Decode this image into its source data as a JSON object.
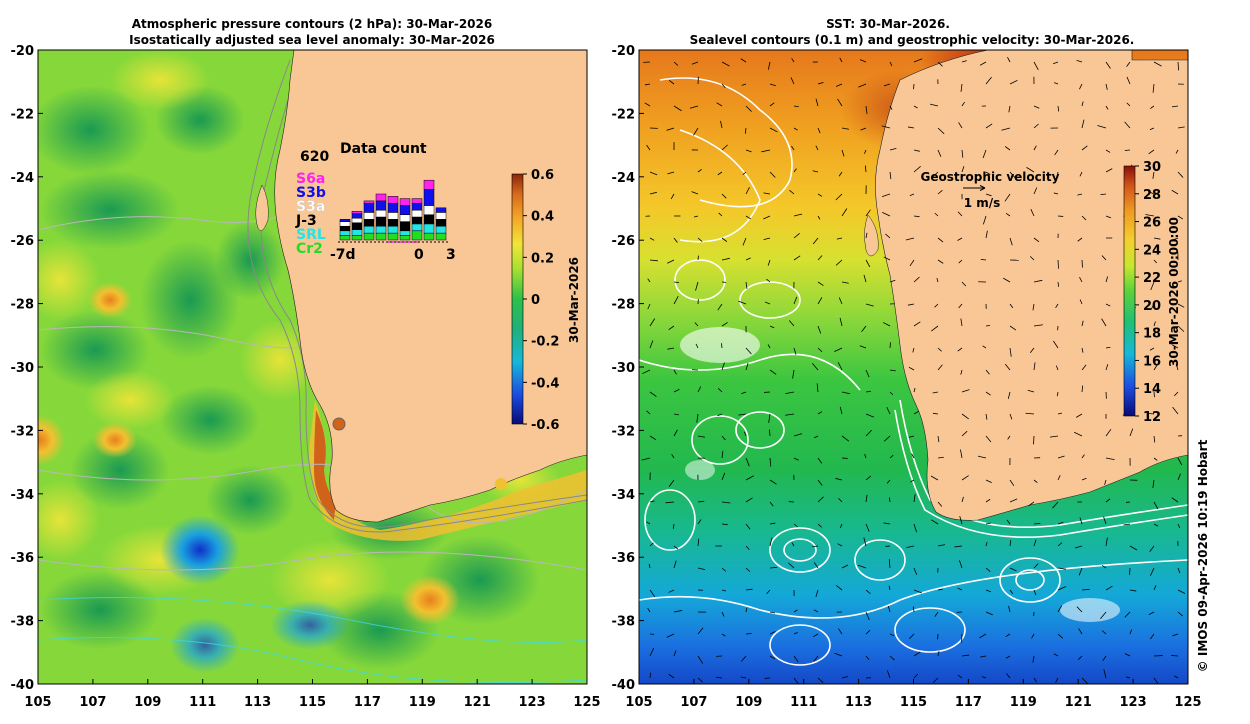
{
  "left_panel": {
    "title_line1": "Atmospheric pressure contours (2 hPa): 30-Mar-2026",
    "title_line2": "Isostatically adjusted sea level anomaly: 30-Mar-2026",
    "y_ticks": [
      "-20",
      "-22",
      "-24",
      "-26",
      "-28",
      "-30",
      "-32",
      "-34",
      "-36",
      "-38",
      "-40"
    ],
    "x_ticks": [
      "105",
      "107",
      "109",
      "111",
      "113",
      "115",
      "117",
      "119",
      "121",
      "123",
      "125"
    ],
    "colorbar": {
      "ticks": [
        "0.6",
        "0.4",
        "0.2",
        "0",
        "-0.2",
        "-0.4",
        "-0.6"
      ],
      "label": "30-Mar-2026"
    },
    "inset": {
      "title": "Data count",
      "max_count": "620",
      "legend": [
        {
          "label": "S6a",
          "color": "#ff22ee"
        },
        {
          "label": "S3b",
          "color": "#1010ee"
        },
        {
          "label": "S3a",
          "color": "#ffffff"
        },
        {
          "label": "J-3",
          "color": "#000000"
        },
        {
          "label": "SRL",
          "color": "#22e6e6"
        },
        {
          "label": "Cr2",
          "color": "#22dd22"
        }
      ],
      "x_labels": [
        "-7d",
        "0",
        "3"
      ]
    }
  },
  "right_panel": {
    "title_line1": "SST: 30-Mar-2026.",
    "title_line2": "Sealevel contours (0.1 m) and geostrophic velocity: 30-Mar-2026.",
    "y_ticks": [
      "-20",
      "-22",
      "-24",
      "-26",
      "-28",
      "-30",
      "-32",
      "-34",
      "-36",
      "-38",
      "-40"
    ],
    "x_ticks": [
      "105",
      "107",
      "109",
      "111",
      "113",
      "115",
      "117",
      "119",
      "121",
      "123",
      "125"
    ],
    "velocity_legend_title": "Geostrophic velocity",
    "velocity_legend_scale": "1 m/s",
    "colorbar": {
      "ticks": [
        "30",
        "28",
        "26",
        "24",
        "22",
        "20",
        "18",
        "16",
        "14",
        "12"
      ],
      "label": "30-Mar-2026 00:00:00"
    }
  },
  "credit": "© IMOS 09-Apr-2026 10:19 Hobart"
}
